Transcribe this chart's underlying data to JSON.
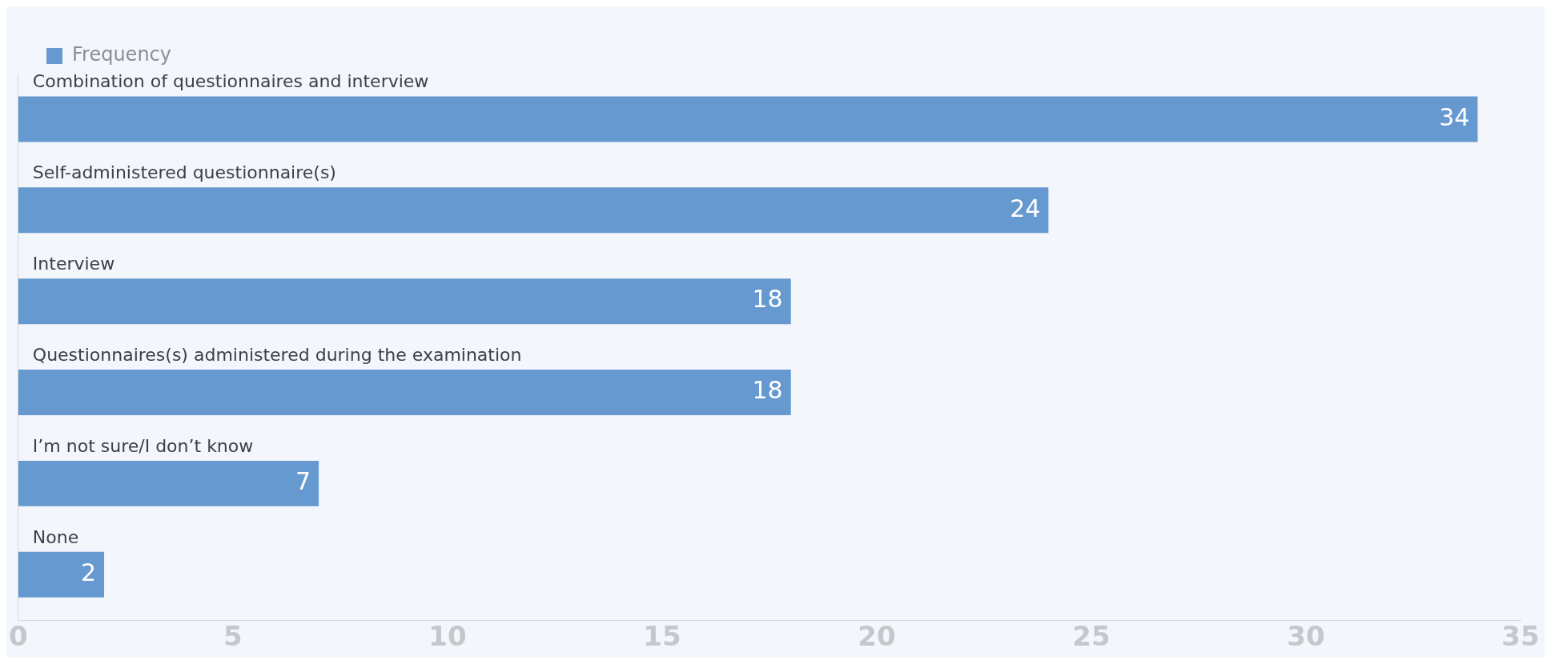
{
  "chart_data": {
    "type": "bar",
    "orientation": "horizontal",
    "categories": [
      "Combination of questionnaires and interview",
      "Self-administered questionnaire(s)",
      "Interview",
      "Questionnaires(s) administered during the examination",
      "I’m not sure/I don’t know",
      "None"
    ],
    "series": [
      {
        "name": "Frequency",
        "color": "#6699cf",
        "values": [
          34,
          24,
          18,
          18,
          7,
          2
        ]
      }
    ],
    "xlim": [
      0,
      35
    ],
    "xticks": [
      0,
      5,
      10,
      15,
      20,
      25,
      30,
      35
    ],
    "grid": false,
    "legend": "top left",
    "data_labels": true
  }
}
